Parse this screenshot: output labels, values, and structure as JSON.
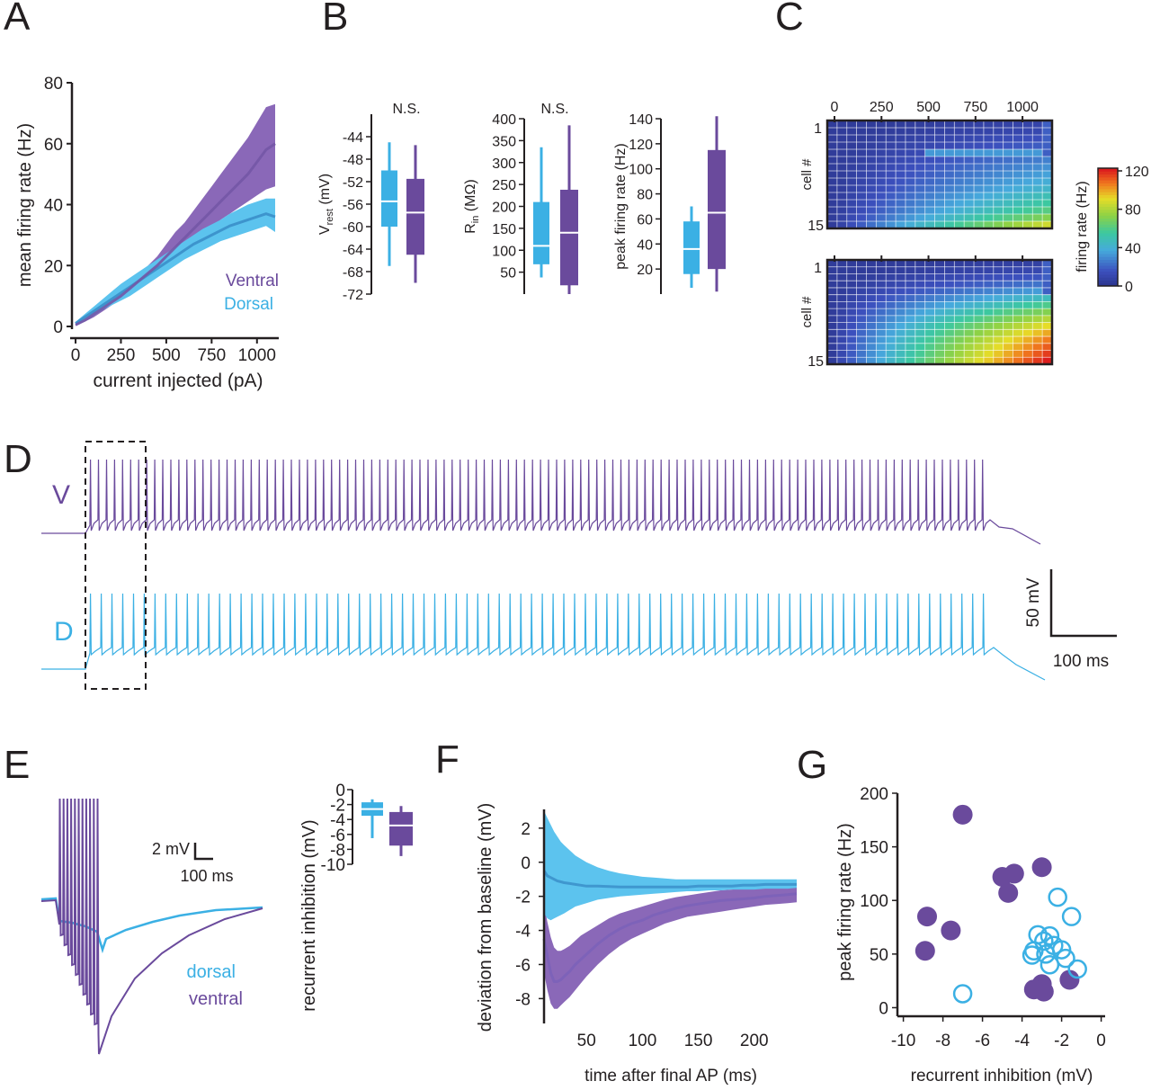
{
  "colors": {
    "ventral": "#6a4a9c",
    "dorsal": "#3bb0e4",
    "ventral_band": "#8a68b8",
    "dorsal_band": "#5cc3ee",
    "axis": "#231f20"
  },
  "panel_labels": [
    "A",
    "B",
    "C",
    "D",
    "E",
    "F",
    "G"
  ],
  "chart_data": [
    {
      "id": "A",
      "type": "line",
      "xlabel": "current injected (pA)",
      "ylabel": "mean firing rate (Hz)",
      "xlim": [
        -20,
        1120
      ],
      "ylim": [
        0,
        80
      ],
      "xticks": [
        0,
        250,
        500,
        750,
        1000
      ],
      "yticks": [
        0,
        20,
        40,
        60,
        80
      ],
      "x": [
        0,
        50,
        100,
        150,
        200,
        250,
        300,
        350,
        400,
        450,
        500,
        550,
        600,
        650,
        700,
        750,
        800,
        850,
        900,
        950,
        1000,
        1050,
        1100
      ],
      "series": [
        {
          "name": "Ventral",
          "mean": [
            0.5,
            2,
            4,
            6,
            8,
            10,
            12.5,
            15,
            17.5,
            20,
            23,
            26,
            29,
            32,
            35,
            38,
            41,
            44,
            47,
            50,
            54,
            58,
            60
          ],
          "lower": [
            0.2,
            1.5,
            3,
            5,
            7,
            9,
            11,
            13,
            15,
            17,
            19.5,
            22,
            25,
            27.5,
            30,
            32.5,
            35,
            37,
            39,
            41,
            43,
            45,
            46
          ],
          "upper": [
            0.8,
            2.5,
            5,
            7,
            9,
            11,
            14,
            17,
            20,
            23,
            27,
            31,
            34,
            38,
            42,
            46,
            50,
            54,
            58,
            62,
            67,
            72,
            73
          ]
        },
        {
          "name": "Dorsal",
          "mean": [
            1,
            3,
            5,
            7,
            9,
            11,
            13,
            15,
            17,
            19,
            21,
            23,
            25,
            27,
            28.5,
            30,
            31.5,
            33,
            34,
            35,
            36,
            37,
            36
          ],
          "lower": [
            0.5,
            2,
            3.5,
            5.5,
            7,
            8.5,
            10,
            12,
            14,
            16,
            18,
            20,
            22,
            23.5,
            25,
            26.5,
            28,
            29,
            30,
            31,
            32,
            33,
            31
          ],
          "upper": [
            1.5,
            4,
            6.5,
            9,
            11.5,
            14,
            16,
            18,
            20,
            22,
            24,
            26,
            28,
            30,
            32,
            33.5,
            35,
            37,
            38.5,
            40,
            41,
            42,
            42
          ]
        }
      ]
    },
    {
      "id": "B",
      "type": "box",
      "plots": [
        {
          "ylabel_main": "V",
          "ylabel_sub": "rest",
          "ylabel_unit": " (mV)",
          "ylim": [
            -72,
            -40
          ],
          "yticks": [
            -72,
            -68,
            -64,
            -60,
            -56,
            -52,
            -48,
            -44
          ],
          "annotation": "N.S.",
          "boxes": [
            {
              "group": "dorsal",
              "min": -67,
              "q1": -60,
              "median": -55.5,
              "q3": -50,
              "max": -45
            },
            {
              "group": "ventral",
              "min": -70,
              "q1": -65,
              "median": -57.5,
              "q3": -51.5,
              "max": -45.5
            }
          ]
        },
        {
          "ylabel_main": "R",
          "ylabel_sub": "in",
          "ylabel_unit": " (MΩ)",
          "ylim": [
            0,
            400
          ],
          "yticks": [
            50,
            100,
            150,
            200,
            250,
            300,
            350,
            400
          ],
          "annotation": "N.S.",
          "boxes": [
            {
              "group": "dorsal",
              "min": 38,
              "q1": 68,
              "median": 110,
              "q3": 210,
              "max": 335
            },
            {
              "group": "ventral",
              "min": 0,
              "q1": 20,
              "median": 140,
              "q3": 238,
              "max": 385
            }
          ]
        },
        {
          "ylabel_main": "peak firing rate (Hz)",
          "ylabel_sub": "",
          "ylabel_unit": "",
          "ylim": [
            0,
            140
          ],
          "yticks": [
            20,
            40,
            60,
            80,
            100,
            120,
            140
          ],
          "annotation": "",
          "boxes": [
            {
              "group": "dorsal",
              "min": 5,
              "q1": 16,
              "median": 36,
              "q3": 58,
              "max": 70
            },
            {
              "group": "ventral",
              "min": 2,
              "q1": 20,
              "median": 65,
              "q3": 115,
              "max": 142
            }
          ]
        }
      ]
    },
    {
      "id": "C",
      "type": "heatmap",
      "xticks": [
        0,
        250,
        500,
        750,
        1000
      ],
      "ylabel": "cell #",
      "yticks": [
        1,
        15
      ],
      "colorbar_label": "firing rate (Hz)",
      "colorbar_ticks": [
        0,
        40,
        80,
        120
      ],
      "zlim": [
        0,
        120
      ],
      "n_rows": 15,
      "n_cols": 23,
      "maps": [
        {
          "group": "dorsal",
          "row_max_rates": [
            8,
            10,
            14,
            18,
            22,
            26,
            30,
            34,
            38,
            42,
            48,
            54,
            60,
            70,
            85
          ]
        },
        {
          "group": "ventral",
          "row_max_rates": [
            6,
            10,
            16,
            24,
            34,
            46,
            58,
            70,
            80,
            90,
            98,
            105,
            110,
            115,
            120
          ]
        }
      ]
    },
    {
      "id": "D",
      "type": "line",
      "traces": [
        {
          "label": "V",
          "group": "ventral",
          "n_spikes": 112
        },
        {
          "label": "D",
          "group": "dorsal",
          "n_spikes": 84
        }
      ],
      "scalebar": {
        "voltage": "50 mV",
        "time": "100 ms"
      }
    },
    {
      "id": "E",
      "type": "line",
      "traces": [
        {
          "label": "dorsal",
          "group": "dorsal"
        },
        {
          "label": "ventral",
          "group": "ventral"
        }
      ],
      "scalebar": {
        "voltage": "2 mV",
        "time": "100 ms"
      },
      "box": {
        "ylabel": "recurrent inhibition (mV)",
        "ylim": [
          -10,
          0
        ],
        "yticks": [
          0,
          -2,
          -4,
          -6,
          -8,
          -10
        ],
        "boxes": [
          {
            "group": "dorsal",
            "min": -6.5,
            "q1": -3.5,
            "median": -2.6,
            "q3": -1.7,
            "max": -1.3
          },
          {
            "group": "ventral",
            "min": -8.9,
            "q1": -7.5,
            "median": -4.8,
            "q3": -3,
            "max": -2.2
          }
        ]
      }
    },
    {
      "id": "F",
      "type": "line",
      "xlabel": "time after final AP (ms)",
      "ylabel": "deviation from baseline (mV)",
      "xlim": [
        12,
        238
      ],
      "ylim": [
        -9.3,
        3.1
      ],
      "xticks": [
        50,
        100,
        150,
        200
      ],
      "yticks": [
        2,
        0,
        -2,
        -4,
        -6,
        -8
      ],
      "x": [
        12,
        15,
        18,
        21,
        24,
        27,
        30,
        35,
        40,
        45,
        50,
        60,
        70,
        80,
        90,
        100,
        110,
        120,
        130,
        140,
        150,
        160,
        170,
        180,
        190,
        200,
        210,
        220,
        230,
        238
      ],
      "series": [
        {
          "group": "dorsal",
          "mean": [
            -0.5,
            -0.8,
            -0.9,
            -1,
            -1.1,
            -1.15,
            -1.2,
            -1.25,
            -1.3,
            -1.35,
            -1.4,
            -1.4,
            -1.42,
            -1.45,
            -1.45,
            -1.45,
            -1.45,
            -1.45,
            -1.45,
            -1.45,
            -1.4,
            -1.4,
            -1.4,
            -1.4,
            -1.35,
            -1.35,
            -1.3,
            -1.3,
            -1.3,
            -1.3
          ],
          "lower": [
            -3,
            -3.3,
            -3.4,
            -3.3,
            -3.2,
            -3.1,
            -3,
            -2.8,
            -2.6,
            -2.5,
            -2.4,
            -2.2,
            -2.1,
            -2,
            -1.95,
            -1.9,
            -1.85,
            -1.8,
            -1.75,
            -1.7,
            -1.7,
            -1.65,
            -1.65,
            -1.6,
            -1.6,
            -1.6,
            -1.55,
            -1.55,
            -1.55,
            -1.5
          ],
          "upper": [
            3,
            2.6,
            2.2,
            1.8,
            1.5,
            1.2,
            1,
            0.7,
            0.4,
            0.2,
            0,
            -0.3,
            -0.5,
            -0.65,
            -0.75,
            -0.85,
            -0.9,
            -0.95,
            -1,
            -1,
            -1,
            -1,
            -1,
            -1,
            -1,
            -1,
            -1,
            -1,
            -1,
            -1
          ]
        },
        {
          "group": "ventral",
          "mean": [
            -4.5,
            -5.5,
            -6.5,
            -7,
            -7,
            -6.9,
            -6.7,
            -6.4,
            -6,
            -5.7,
            -5.4,
            -4.8,
            -4.3,
            -3.9,
            -3.6,
            -3.4,
            -3.1,
            -2.9,
            -2.7,
            -2.55,
            -2.45,
            -2.35,
            -2.25,
            -2.2,
            -2.15,
            -2.1,
            -2,
            -1.95,
            -1.9,
            -1.85
          ],
          "lower": [
            -6.5,
            -7.5,
            -8.3,
            -8.6,
            -8.6,
            -8.4,
            -8.2,
            -7.9,
            -7.5,
            -7.1,
            -6.7,
            -6,
            -5.4,
            -4.9,
            -4.5,
            -4.2,
            -3.9,
            -3.6,
            -3.4,
            -3.2,
            -3.1,
            -3,
            -2.9,
            -2.8,
            -2.7,
            -2.6,
            -2.5,
            -2.45,
            -2.4,
            -2.35
          ],
          "upper": [
            -2.5,
            -3.5,
            -4.4,
            -5,
            -5.2,
            -5.2,
            -5.1,
            -4.9,
            -4.6,
            -4.3,
            -4.1,
            -3.7,
            -3.3,
            -3,
            -2.8,
            -2.6,
            -2.4,
            -2.2,
            -2.05,
            -1.95,
            -1.85,
            -1.75,
            -1.65,
            -1.6,
            -1.55,
            -1.5,
            -1.45,
            -1.4,
            -1.35,
            -1.3
          ]
        }
      ]
    },
    {
      "id": "G",
      "type": "scatter",
      "xlabel": "recurrent inhibition (mV)",
      "ylabel": "peak firing rate (Hz)",
      "xlim": [
        -10.3,
        0.2
      ],
      "ylim": [
        -8,
        200
      ],
      "xticks": [
        -10,
        -8,
        -6,
        -4,
        -2,
        0
      ],
      "yticks": [
        0,
        50,
        100,
        150,
        200
      ],
      "series": [
        {
          "group": "ventral",
          "marker": "filled",
          "points": [
            [
              -7,
              180
            ],
            [
              -4.4,
              125
            ],
            [
              -5,
              122
            ],
            [
              -4.7,
              107
            ],
            [
              -3,
              131
            ],
            [
              -8.8,
              85
            ],
            [
              -7.6,
              72
            ],
            [
              -8.9,
              53
            ],
            [
              -3,
              22
            ],
            [
              -3.4,
              17
            ],
            [
              -2.9,
              15
            ],
            [
              -1.6,
              26
            ]
          ]
        },
        {
          "group": "dorsal",
          "marker": "open",
          "points": [
            [
              -2.2,
              103
            ],
            [
              -1.5,
              85
            ],
            [
              -3.2,
              68
            ],
            [
              -2.6,
              67
            ],
            [
              -2.9,
              62
            ],
            [
              -2.4,
              58
            ],
            [
              -2,
              54
            ],
            [
              -3.4,
              53
            ],
            [
              -2.8,
              50
            ],
            [
              -3.5,
              49
            ],
            [
              -1.8,
              46
            ],
            [
              -2.6,
              40
            ],
            [
              -1.2,
              36
            ],
            [
              -7,
              13
            ]
          ]
        }
      ]
    }
  ]
}
